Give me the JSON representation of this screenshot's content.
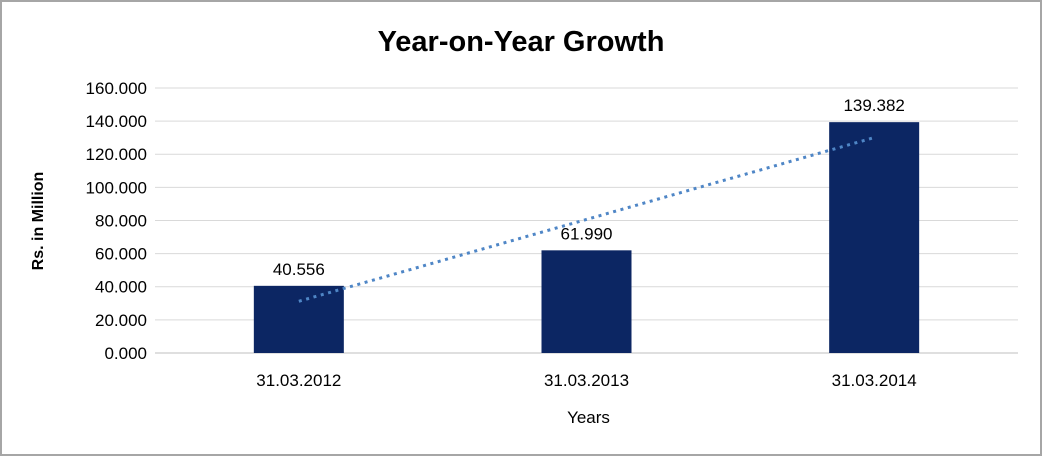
{
  "frame": {
    "border_color": "#a6a6a6",
    "background_color": "#ffffff"
  },
  "chart_data": {
    "type": "bar",
    "title": "Year-on-Year Growth",
    "xlabel": "Years",
    "ylabel": "Rs. in Million",
    "categories": [
      "31.03.2012",
      "31.03.2013",
      "31.03.2014"
    ],
    "values": [
      40.556,
      61.99,
      139.382
    ],
    "data_labels": [
      "40.556",
      "61.990",
      "139.382"
    ],
    "ylim": [
      0,
      160
    ],
    "ytick_step": 20,
    "ytick_labels": [
      "0.000",
      "20.000",
      "40.000",
      "60.000",
      "80.000",
      "100.000",
      "120.000",
      "140.000",
      "160.000"
    ],
    "grid": true,
    "legend": "none",
    "bar_color": "#0C2663",
    "gridline_color": "#d9d9d9",
    "axis_line_color": "#bfbfbf",
    "trendline": {
      "type": "linear",
      "style": "dotted",
      "color": "#4F86C6"
    }
  }
}
